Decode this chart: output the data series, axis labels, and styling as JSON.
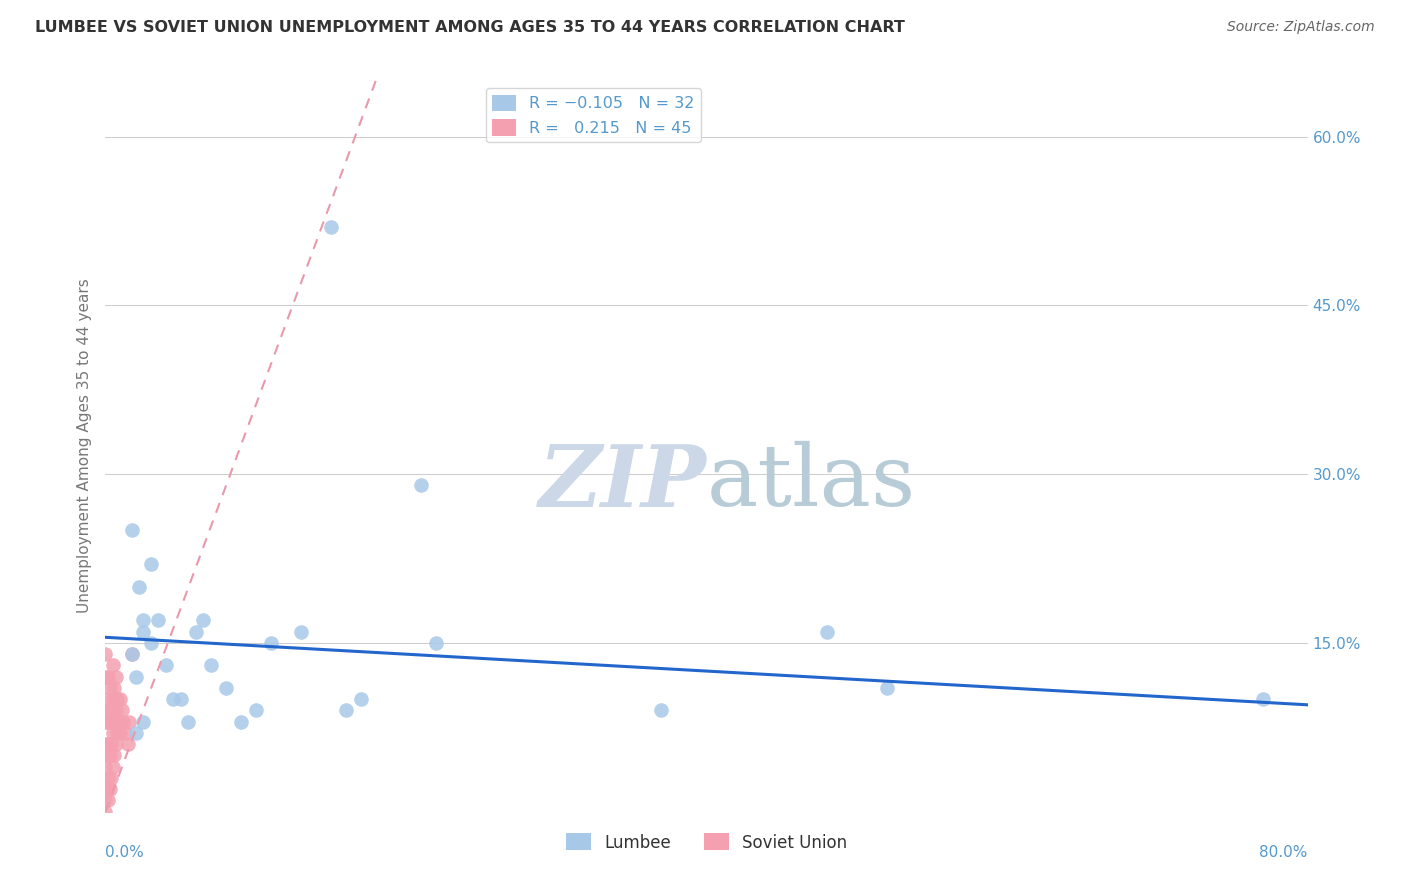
{
  "title": "LUMBEE VS SOVIET UNION UNEMPLOYMENT AMONG AGES 35 TO 44 YEARS CORRELATION CHART",
  "source": "Source: ZipAtlas.com",
  "ylabel": "Unemployment Among Ages 35 to 44 years",
  "xlim": [
    0.0,
    0.8
  ],
  "ylim": [
    0.0,
    0.65
  ],
  "lumbee_color": "#a8c8e8",
  "soviet_color": "#f4a0b0",
  "lumbee_trend_color": "#2266cc",
  "soviet_trend_color": "#e899aa",
  "lumbee_R": -0.105,
  "lumbee_N": 32,
  "soviet_R": 0.215,
  "soviet_N": 45,
  "axis_label_color": "#5599cc",
  "title_color": "#333333",
  "ylabel_color": "#777777",
  "background_color": "#ffffff",
  "watermark_color": "#ccd8e8",
  "grid_color": "#cccccc",
  "lumbee_x": [
    0.018,
    0.02,
    0.022,
    0.025,
    0.025,
    0.03,
    0.03,
    0.035,
    0.04,
    0.045,
    0.05,
    0.055,
    0.06,
    0.065,
    0.07,
    0.08,
    0.09,
    0.1,
    0.11,
    0.13,
    0.15,
    0.16,
    0.17,
    0.21,
    0.22,
    0.37,
    0.48,
    0.52,
    0.77,
    0.018,
    0.02,
    0.025
  ],
  "lumbee_y": [
    0.14,
    0.12,
    0.2,
    0.16,
    0.17,
    0.22,
    0.15,
    0.17,
    0.13,
    0.1,
    0.1,
    0.08,
    0.16,
    0.17,
    0.13,
    0.11,
    0.08,
    0.09,
    0.15,
    0.16,
    0.52,
    0.09,
    0.1,
    0.29,
    0.15,
    0.09,
    0.16,
    0.11,
    0.1,
    0.25,
    0.07,
    0.08
  ],
  "soviet_x": [
    0.0,
    0.0,
    0.0,
    0.0,
    0.0,
    0.0,
    0.0,
    0.0,
    0.0,
    0.001,
    0.001,
    0.001,
    0.002,
    0.002,
    0.002,
    0.002,
    0.002,
    0.003,
    0.003,
    0.003,
    0.003,
    0.004,
    0.004,
    0.004,
    0.005,
    0.005,
    0.005,
    0.005,
    0.006,
    0.006,
    0.006,
    0.007,
    0.007,
    0.007,
    0.008,
    0.008,
    0.009,
    0.01,
    0.01,
    0.011,
    0.012,
    0.013,
    0.015,
    0.016,
    0.018
  ],
  "soviet_y": [
    0.0,
    0.01,
    0.02,
    0.04,
    0.06,
    0.08,
    0.1,
    0.12,
    0.14,
    0.02,
    0.05,
    0.08,
    0.01,
    0.03,
    0.06,
    0.09,
    0.12,
    0.02,
    0.05,
    0.08,
    0.11,
    0.03,
    0.06,
    0.09,
    0.04,
    0.07,
    0.1,
    0.13,
    0.05,
    0.08,
    0.11,
    0.06,
    0.09,
    0.12,
    0.07,
    0.1,
    0.08,
    0.07,
    0.1,
    0.09,
    0.08,
    0.07,
    0.06,
    0.08,
    0.14
  ],
  "lumbee_trend_x": [
    0.0,
    0.8
  ],
  "lumbee_trend_y": [
    0.155,
    0.095
  ],
  "soviet_trend_x": [
    0.0,
    0.18
  ],
  "soviet_trend_y": [
    0.0,
    0.65
  ]
}
